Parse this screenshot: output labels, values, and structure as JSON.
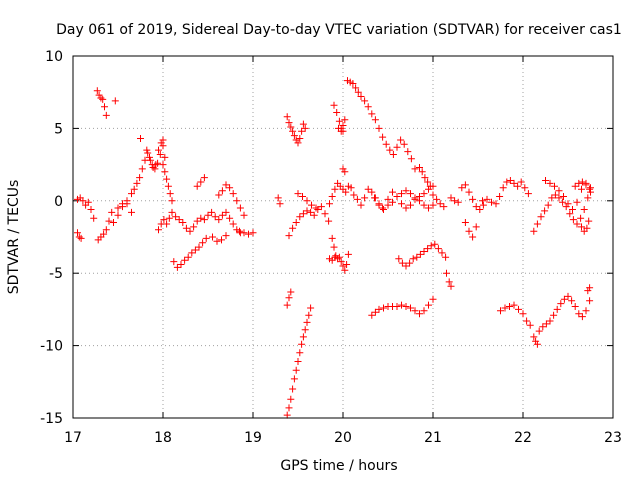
{
  "chart_data": {
    "type": "scatter",
    "title": "Day 061 of 2019, Sidereal Day-to-day VTEC variation (SDTVAR) for receiver cas1",
    "xlabel": "GPS time / hours",
    "ylabel": "SDTVAR / TECUs",
    "xlim": [
      17,
      23
    ],
    "ylim": [
      -15,
      10
    ],
    "xticks": [
      "17",
      "18",
      "19",
      "20",
      "21",
      "22",
      "23"
    ],
    "yticks": [
      "10",
      "5",
      "0",
      "-5",
      "-10",
      "-15"
    ],
    "grid": true,
    "marker": "plus",
    "color": "#ff0000",
    "series": [
      {
        "name": "s1",
        "x": [
          17.05,
          17.08,
          17.11,
          17.14,
          17.17,
          17.2,
          17.23
        ],
        "y": [
          0.1,
          0.2,
          0.0,
          -0.3,
          -0.1,
          -0.6,
          -1.2
        ]
      },
      {
        "name": "s2",
        "x": [
          17.05,
          17.07,
          17.09
        ],
        "y": [
          -2.2,
          -2.5,
          -2.6
        ]
      },
      {
        "name": "s3",
        "x": [
          17.27,
          17.29,
          17.31,
          17.33,
          17.35,
          17.37
        ],
        "y": [
          7.6,
          7.3,
          7.1,
          7.0,
          6.5,
          5.9
        ]
      },
      {
        "name": "s4",
        "x": [
          17.47
        ],
        "y": [
          6.9
        ]
      },
      {
        "name": "s5",
        "x": [
          17.28,
          17.31,
          17.34,
          17.37,
          17.4,
          17.43
        ],
        "y": [
          -2.7,
          -2.5,
          -2.3,
          -2.0,
          -1.4,
          -0.8
        ]
      },
      {
        "name": "s6",
        "x": [
          17.45,
          17.5,
          17.55,
          17.6,
          17.65
        ],
        "y": [
          -1.5,
          -1.0,
          -0.4,
          -0.2,
          -0.8
        ]
      },
      {
        "name": "s7",
        "x": [
          17.5,
          17.55,
          17.6
        ],
        "y": [
          -0.5,
          -0.2,
          0.0
        ]
      },
      {
        "name": "s8",
        "x": [
          17.65,
          17.68,
          17.71,
          17.74,
          17.77,
          17.8,
          17.83,
          17.86,
          17.89,
          17.92,
          17.95,
          17.98,
          18.0,
          18.02
        ],
        "y": [
          0.5,
          0.8,
          1.2,
          1.6,
          2.2,
          2.8,
          3.3,
          2.8,
          2.3,
          2.5,
          3.5,
          4.0,
          4.2,
          3.0
        ]
      },
      {
        "name": "s9",
        "x": [
          17.75
        ],
        "y": [
          4.3
        ]
      },
      {
        "name": "s10",
        "x": [
          17.82,
          17.85,
          17.88,
          17.91,
          17.94,
          17.97,
          18.0
        ],
        "y": [
          3.5,
          3.0,
          2.5,
          2.2,
          2.6,
          3.2,
          3.8
        ]
      },
      {
        "name": "s11",
        "x": [
          18.0,
          18.02,
          18.04,
          18.06,
          18.08,
          18.1
        ],
        "y": [
          2.5,
          2.0,
          1.5,
          1.0,
          0.5,
          0.0
        ]
      },
      {
        "name": "s12",
        "x": [
          17.95,
          17.98,
          18.01,
          18.04,
          18.07,
          18.1,
          18.14,
          18.18,
          18.22,
          18.26,
          18.3,
          18.34,
          18.38,
          18.42,
          18.46,
          18.5,
          18.54,
          18.58,
          18.62,
          18.66,
          18.7,
          18.74,
          18.78,
          18.82,
          18.86
        ],
        "y": [
          -2.0,
          -1.6,
          -1.3,
          -1.6,
          -1.2,
          -0.8,
          -1.1,
          -1.3,
          -1.5,
          -1.9,
          -2.1,
          -1.8,
          -1.4,
          -1.2,
          -1.3,
          -1.0,
          -0.8,
          -1.1,
          -1.3,
          -1.0,
          -0.8,
          -1.2,
          -1.6,
          -2.0,
          -2.2
        ]
      },
      {
        "name": "s13",
        "x": [
          18.12,
          18.16,
          18.2,
          18.24,
          18.28,
          18.32,
          18.36,
          18.4,
          18.44,
          18.48
        ],
        "y": [
          -4.2,
          -4.6,
          -4.4,
          -4.1,
          -3.9,
          -3.6,
          -3.4,
          -3.2,
          -2.9,
          -2.6
        ]
      },
      {
        "name": "s14",
        "x": [
          18.38,
          18.42,
          18.46
        ],
        "y": [
          1.0,
          1.3,
          1.6
        ]
      },
      {
        "name": "s15",
        "x": [
          18.62,
          18.66,
          18.7,
          18.74,
          18.78,
          18.82,
          18.86,
          18.9
        ],
        "y": [
          0.4,
          0.7,
          1.1,
          0.9,
          0.5,
          0.0,
          -0.5,
          -1.0
        ]
      },
      {
        "name": "s16",
        "x": [
          18.55,
          18.6,
          18.65,
          18.7
        ],
        "y": [
          -2.5,
          -2.8,
          -2.7,
          -2.4
        ]
      },
      {
        "name": "s17",
        "x": [
          18.85,
          18.9,
          18.95,
          19.0
        ],
        "y": [
          -2.1,
          -2.2,
          -2.3,
          -2.2
        ]
      },
      {
        "name": "s18",
        "x": [
          19.28,
          19.3
        ],
        "y": [
          0.2,
          -0.2
        ]
      },
      {
        "name": "s19",
        "x": [
          19.38,
          19.4,
          19.42,
          19.44,
          19.46,
          19.48,
          19.5,
          19.52,
          19.54,
          19.56,
          19.58
        ],
        "y": [
          5.8,
          5.4,
          5.1,
          4.8,
          4.5,
          4.2,
          4.0,
          4.3,
          4.8,
          5.3,
          5.0
        ]
      },
      {
        "name": "s20",
        "x": [
          19.4,
          19.44,
          19.48,
          19.52,
          19.56,
          19.6,
          19.64,
          19.68,
          19.72,
          19.76,
          19.8,
          19.84
        ],
        "y": [
          -2.4,
          -1.9,
          -1.5,
          -1.1,
          -0.9,
          -0.7,
          -0.8,
          -1.0,
          -0.6,
          -0.4,
          -0.9,
          -1.4
        ]
      },
      {
        "name": "s21",
        "x": [
          19.5,
          19.55,
          19.6,
          19.65,
          19.7
        ],
        "y": [
          0.5,
          0.3,
          0.0,
          -0.3,
          -0.5
        ]
      },
      {
        "name": "s22",
        "x": [
          19.38,
          19.4,
          19.42
        ],
        "y": [
          -7.2,
          -6.7,
          -6.3
        ]
      },
      {
        "name": "s23",
        "x": [
          19.38,
          19.4,
          19.42,
          19.44,
          19.46,
          19.48,
          19.5,
          19.52,
          19.54,
          19.56,
          19.58,
          19.6,
          19.62,
          19.64
        ],
        "y": [
          -14.8,
          -14.3,
          -13.7,
          -13.0,
          -12.3,
          -11.7,
          -11.1,
          -10.5,
          -9.9,
          -9.4,
          -8.9,
          -8.4,
          -7.9,
          -7.4
        ]
      },
      {
        "name": "s24",
        "x": [
          19.85,
          19.88,
          19.91,
          19.94,
          19.97,
          20.0,
          20.03,
          20.06,
          20.09
        ],
        "y": [
          -0.2,
          0.3,
          0.8,
          1.2,
          1.0,
          0.8,
          0.6,
          1.0,
          0.9
        ]
      },
      {
        "name": "s25",
        "x": [
          19.9,
          19.93,
          19.96,
          19.98,
          20.0
        ],
        "y": [
          6.6,
          6.1,
          5.5,
          5.0,
          4.8
        ]
      },
      {
        "name": "s26",
        "x": [
          19.95,
          19.98,
          20.0,
          20.02
        ],
        "y": [
          5.0,
          4.8,
          5.2,
          5.6
        ]
      },
      {
        "name": "s27",
        "x": [
          19.88,
          19.9,
          19.92,
          19.94,
          19.96,
          19.98,
          20.0,
          20.02,
          20.04,
          20.06
        ],
        "y": [
          -2.6,
          -3.2,
          -3.8,
          -4.0,
          -3.9,
          -4.2,
          -4.5,
          -4.8,
          -4.4,
          -3.7
        ]
      },
      {
        "name": "s28",
        "x": [
          19.85,
          19.88,
          19.91
        ],
        "y": [
          -4.0,
          -4.1,
          -3.9
        ]
      },
      {
        "name": "s29",
        "x": [
          20.0,
          20.02
        ],
        "y": [
          2.2,
          2.0
        ]
      },
      {
        "name": "s30",
        "x": [
          20.05,
          20.08,
          20.11,
          20.14,
          20.17,
          20.2,
          20.24,
          20.28,
          20.32,
          20.36,
          20.4,
          20.44,
          20.48,
          20.52,
          20.56,
          20.6,
          20.64,
          20.68,
          20.72,
          20.76,
          20.8
        ],
        "y": [
          8.3,
          8.2,
          8.1,
          7.8,
          7.5,
          7.2,
          6.9,
          6.5,
          6.0,
          5.6,
          5.0,
          4.4,
          3.9,
          3.5,
          3.2,
          3.7,
          4.2,
          3.9,
          3.4,
          2.9,
          2.2
        ]
      },
      {
        "name": "s31",
        "x": [
          20.12,
          20.16,
          20.2,
          20.24,
          20.28,
          20.32,
          20.36,
          20.4,
          20.44
        ],
        "y": [
          0.4,
          0.1,
          -0.3,
          0.2,
          0.8,
          0.6,
          0.2,
          -0.2,
          -0.5
        ]
      },
      {
        "name": "s32",
        "x": [
          20.35,
          20.4,
          20.45,
          20.5,
          20.55,
          20.6,
          20.65,
          20.7,
          20.75,
          20.8,
          20.85,
          20.9,
          20.95,
          21.0
        ],
        "y": [
          0.2,
          -0.3,
          -0.6,
          0.1,
          0.6,
          0.3,
          -0.2,
          -0.5,
          -0.3,
          0.1,
          0.3,
          0.5,
          0.8,
          1.0
        ]
      },
      {
        "name": "s33",
        "x": [
          20.5,
          20.55,
          20.6,
          20.65,
          20.7,
          20.75,
          20.8,
          20.85,
          20.9,
          20.95,
          21.0
        ],
        "y": [
          -0.3,
          -0.1,
          0.3,
          0.5,
          0.7,
          0.5,
          0.2,
          0.0,
          -0.3,
          -0.5,
          -0.3
        ]
      },
      {
        "name": "s34",
        "x": [
          20.32,
          20.36,
          20.4,
          20.45,
          20.5,
          20.55,
          20.6,
          20.65,
          20.7,
          20.75,
          20.8,
          20.85,
          20.9,
          20.95,
          21.0
        ],
        "y": [
          -7.9,
          -7.7,
          -7.5,
          -7.4,
          -7.3,
          -7.3,
          -7.3,
          -7.2,
          -7.3,
          -7.4,
          -7.6,
          -7.8,
          -7.6,
          -7.2,
          -6.8
        ]
      },
      {
        "name": "s35",
        "x": [
          20.62,
          20.66,
          20.7,
          20.74,
          20.78,
          20.82,
          20.86,
          20.9,
          20.94,
          20.98,
          21.02,
          21.06,
          21.1,
          21.14
        ],
        "y": [
          -4.0,
          -4.3,
          -4.5,
          -4.3,
          -4.0,
          -3.9,
          -3.7,
          -3.5,
          -3.3,
          -3.1,
          -3.0,
          -3.3,
          -3.6,
          -3.9
        ]
      },
      {
        "name": "s36",
        "x": [
          20.85,
          20.88,
          20.91,
          20.94,
          20.97
        ],
        "y": [
          2.3,
          2.0,
          1.6,
          1.3,
          1.0
        ]
      },
      {
        "name": "s37",
        "x": [
          21.0,
          21.04,
          21.08,
          21.12
        ],
        "y": [
          0.4,
          0.1,
          -0.2,
          -0.4
        ]
      },
      {
        "name": "s38",
        "x": [
          21.15,
          21.18,
          21.2
        ],
        "y": [
          -5.0,
          -5.6,
          -5.9
        ]
      },
      {
        "name": "s39",
        "x": [
          21.2,
          21.24,
          21.28,
          21.32,
          21.36,
          21.4,
          21.44,
          21.48,
          21.52,
          21.56
        ],
        "y": [
          0.2,
          0.0,
          -0.1,
          0.9,
          1.1,
          0.6,
          0.1,
          -0.4,
          -0.6,
          -0.3
        ]
      },
      {
        "name": "s40",
        "x": [
          21.36,
          21.4,
          21.44,
          21.48
        ],
        "y": [
          -1.5,
          -2.1,
          -2.5,
          -1.8
        ]
      },
      {
        "name": "s41",
        "x": [
          21.55,
          21.6,
          21.65
        ],
        "y": [
          0.0,
          0.1,
          -0.1
        ]
      },
      {
        "name": "s42",
        "x": [
          21.7,
          21.74,
          21.78,
          21.82,
          21.86,
          21.9,
          21.94,
          21.98,
          22.02,
          22.06
        ],
        "y": [
          -0.2,
          0.3,
          0.9,
          1.3,
          1.4,
          1.2,
          1.0,
          1.3,
          0.9,
          0.5
        ]
      },
      {
        "name": "s43",
        "x": [
          21.75,
          21.8,
          21.85,
          21.9,
          21.95,
          22.0,
          22.04,
          22.08
        ],
        "y": [
          -7.6,
          -7.4,
          -7.3,
          -7.2,
          -7.5,
          -7.8,
          -8.3,
          -8.6
        ]
      },
      {
        "name": "s44",
        "x": [
          22.12,
          22.14,
          22.16
        ],
        "y": [
          -9.4,
          -9.7,
          -9.9
        ]
      },
      {
        "name": "s45",
        "x": [
          22.18,
          22.22,
          22.26,
          22.3,
          22.34,
          22.38,
          22.42,
          22.46,
          22.5,
          22.54,
          22.58,
          22.62,
          22.66,
          22.7,
          22.74
        ],
        "y": [
          -9.0,
          -8.7,
          -8.5,
          -8.3,
          -7.9,
          -7.5,
          -7.1,
          -6.8,
          -6.6,
          -6.9,
          -7.3,
          -7.8,
          -8.0,
          -7.6,
          -6.9
        ]
      },
      {
        "name": "s46",
        "x": [
          22.72,
          22.74
        ],
        "y": [
          -6.2,
          -6.0
        ]
      },
      {
        "name": "s47",
        "x": [
          22.12,
          22.16,
          22.2,
          22.24,
          22.28,
          22.32,
          22.36,
          22.4,
          22.44,
          22.48,
          22.52,
          22.56,
          22.6,
          22.64,
          22.68,
          22.72,
          22.75
        ],
        "y": [
          -2.1,
          -1.6,
          -1.1,
          -0.7,
          -0.3,
          0.2,
          0.4,
          0.2,
          -0.1,
          -0.4,
          -0.9,
          -1.3,
          -1.6,
          -1.2,
          -0.6,
          0.2,
          0.6
        ]
      },
      {
        "name": "s48",
        "x": [
          22.25,
          22.3,
          22.35,
          22.4,
          22.45,
          22.5,
          22.55,
          22.6,
          22.65,
          22.7,
          22.75
        ],
        "y": [
          1.4,
          1.2,
          1.0,
          0.7,
          0.3,
          -0.2,
          -0.6,
          -0.1,
          0.8,
          1.2,
          0.9
        ]
      },
      {
        "name": "s49",
        "x": [
          22.58,
          22.62,
          22.66,
          22.7,
          22.74
        ],
        "y": [
          1.0,
          1.2,
          1.3,
          1.1,
          0.8
        ]
      },
      {
        "name": "s50",
        "x": [
          22.65,
          22.68,
          22.71,
          22.73
        ],
        "y": [
          -1.8,
          -2.1,
          -1.9,
          -1.4
        ]
      }
    ]
  }
}
